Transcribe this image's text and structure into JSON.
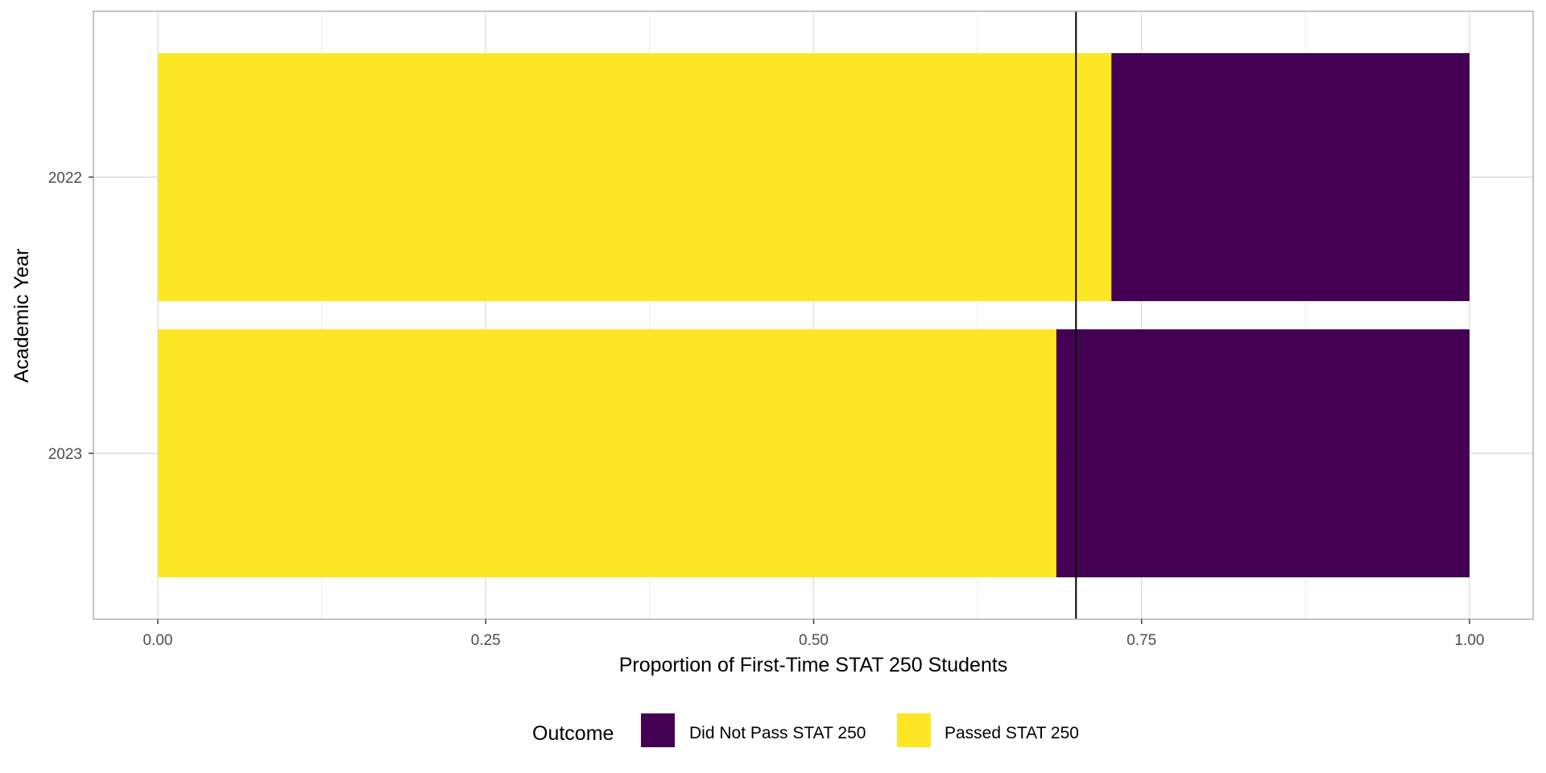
{
  "chart_data": {
    "type": "bar",
    "orientation": "horizontal",
    "stacked": true,
    "categories": [
      "2022",
      "2023"
    ],
    "series": [
      {
        "name": "Passed STAT 250",
        "color": "#FDE725",
        "values": [
          0.727,
          0.685
        ]
      },
      {
        "name": "Did Not Pass STAT 250",
        "color": "#440154",
        "values": [
          0.273,
          0.315
        ]
      }
    ],
    "reference_line": {
      "x": 0.7,
      "color": "#000000"
    },
    "xlabel": "Proportion of First-Time STAT 250 Students",
    "ylabel": "Academic Year",
    "xlim": [
      -0.05,
      1.05
    ],
    "x_ticks": [
      0,
      0.25,
      0.5,
      0.75,
      1
    ],
    "x_tick_labels": [
      "0.00",
      "0.25",
      "0.50",
      "0.75",
      "1.00"
    ],
    "grid": true,
    "legend": {
      "title": "Outcome",
      "position": "bottom",
      "entries": [
        {
          "label": "Did Not Pass STAT 250",
          "color": "#440154"
        },
        {
          "label": "Passed STAT 250",
          "color": "#FDE725"
        }
      ]
    }
  }
}
